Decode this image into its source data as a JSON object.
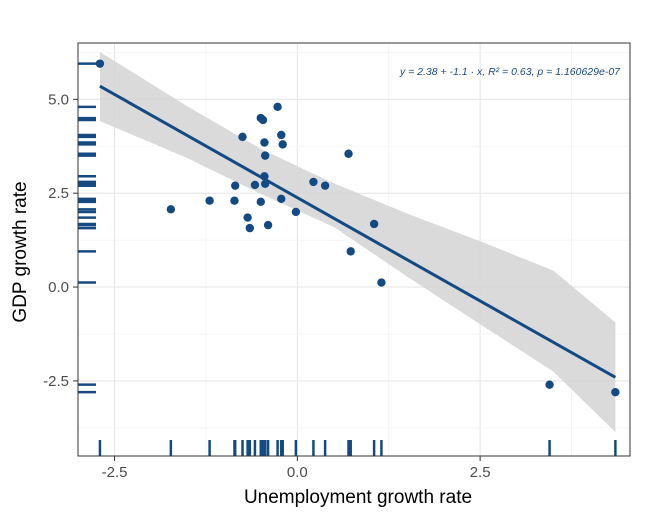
{
  "chart_data": {
    "type": "scatter",
    "xlabel": "Unemployment growth rate",
    "ylabel": "GDP growth rate",
    "xlim": [
      -3.0,
      4.55
    ],
    "ylim": [
      -4.5,
      6.5
    ],
    "xticks": [
      -2.5,
      0.0,
      2.5
    ],
    "xtick_labels": [
      "-2.5",
      "0.0",
      "2.5"
    ],
    "yticks": [
      -2.5,
      0.0,
      2.5,
      5.0
    ],
    "ytick_labels": [
      "-2.5",
      "0.0",
      "2.5",
      "5.0"
    ],
    "grid": true,
    "annotation": "y = 2.38 + -1.1 · x,  R² = 0.63,  p = 1.160629e-07",
    "fit": {
      "intercept": 2.38,
      "slope": -1.1,
      "x_range": [
        -2.7,
        4.35
      ]
    },
    "confidence_band": {
      "x": [
        -2.7,
        -1.5,
        -0.5,
        0.5,
        1.5,
        2.5,
        3.5,
        4.35
      ],
      "lower": [
        4.42,
        3.43,
        2.48,
        1.6,
        0.28,
        -0.99,
        -2.25,
        -3.86
      ],
      "upper": [
        6.26,
        4.81,
        3.68,
        2.76,
        1.96,
        1.22,
        0.44,
        -0.94
      ]
    },
    "points": [
      {
        "x": -2.7,
        "y": 5.95
      },
      {
        "x": -1.73,
        "y": 2.07
      },
      {
        "x": -1.2,
        "y": 2.3
      },
      {
        "x": -0.85,
        "y": 2.7
      },
      {
        "x": -0.86,
        "y": 2.3
      },
      {
        "x": -0.75,
        "y": 4.0
      },
      {
        "x": -0.68,
        "y": 1.85
      },
      {
        "x": -0.65,
        "y": 1.57
      },
      {
        "x": -0.58,
        "y": 2.72
      },
      {
        "x": -0.5,
        "y": 4.5
      },
      {
        "x": -0.47,
        "y": 4.45
      },
      {
        "x": -0.5,
        "y": 2.27
      },
      {
        "x": -0.45,
        "y": 2.95
      },
      {
        "x": -0.45,
        "y": 3.85
      },
      {
        "x": -0.44,
        "y": 2.75
      },
      {
        "x": -0.44,
        "y": 3.5
      },
      {
        "x": -0.4,
        "y": 1.65
      },
      {
        "x": -0.27,
        "y": 4.8
      },
      {
        "x": -0.22,
        "y": 2.35
      },
      {
        "x": -0.22,
        "y": 4.05
      },
      {
        "x": -0.2,
        "y": 3.8
      },
      {
        "x": -0.02,
        "y": 2.0
      },
      {
        "x": 0.22,
        "y": 2.8
      },
      {
        "x": 0.38,
        "y": 2.7
      },
      {
        "x": 0.7,
        "y": 3.55
      },
      {
        "x": 0.73,
        "y": 0.95
      },
      {
        "x": 1.05,
        "y": 1.68
      },
      {
        "x": 1.15,
        "y": 0.12
      },
      {
        "x": 3.45,
        "y": -2.6
      },
      {
        "x": 4.35,
        "y": -2.8
      }
    ],
    "colors": {
      "point": "#134a84",
      "line": "#134a84",
      "band": "#d4d4d4",
      "rug": "#134a84",
      "grid_major": "#e6e6e6",
      "grid_minor": "#f2f2f2",
      "panel_border": "#333333"
    }
  }
}
